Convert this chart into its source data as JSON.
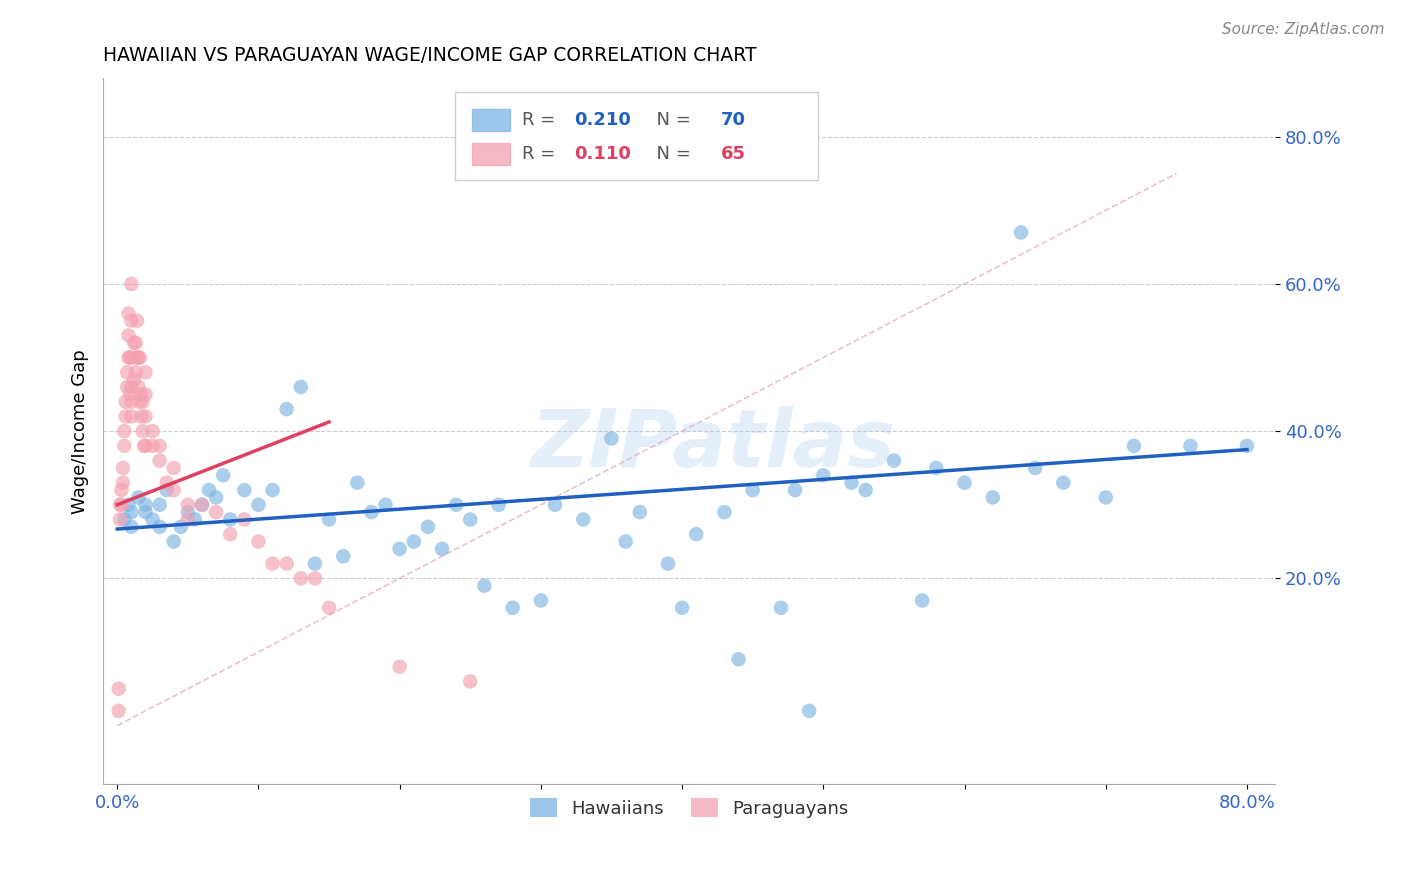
{
  "title": "HAWAIIAN VS PARAGUAYAN WAGE/INCOME GAP CORRELATION CHART",
  "source": "Source: ZipAtlas.com",
  "xlim": [
    -0.01,
    0.82
  ],
  "ylim": [
    -0.08,
    0.88
  ],
  "hawaiians_R": 0.21,
  "hawaiians_N": 70,
  "paraguayans_R": 0.11,
  "paraguayans_N": 65,
  "hawaiian_color": "#7EB4E3",
  "paraguayan_color": "#F4A0B0",
  "hawaiian_line_color": "#2060C0",
  "paraguayan_line_color": "#E04060",
  "hawaiians_x": [
    0.005,
    0.008,
    0.01,
    0.01,
    0.015,
    0.02,
    0.02,
    0.025,
    0.03,
    0.03,
    0.035,
    0.04,
    0.045,
    0.05,
    0.055,
    0.06,
    0.065,
    0.07,
    0.075,
    0.08,
    0.09,
    0.1,
    0.11,
    0.12,
    0.13,
    0.14,
    0.15,
    0.16,
    0.17,
    0.18,
    0.19,
    0.2,
    0.21,
    0.22,
    0.23,
    0.24,
    0.25,
    0.26,
    0.27,
    0.28,
    0.3,
    0.31,
    0.33,
    0.35,
    0.36,
    0.37,
    0.39,
    0.4,
    0.41,
    0.43,
    0.44,
    0.45,
    0.47,
    0.48,
    0.49,
    0.5,
    0.52,
    0.53,
    0.55,
    0.57,
    0.58,
    0.6,
    0.62,
    0.64,
    0.65,
    0.67,
    0.7,
    0.72,
    0.76,
    0.8
  ],
  "hawaiians_y": [
    0.28,
    0.3,
    0.27,
    0.29,
    0.31,
    0.29,
    0.3,
    0.28,
    0.27,
    0.3,
    0.32,
    0.25,
    0.27,
    0.29,
    0.28,
    0.3,
    0.32,
    0.31,
    0.34,
    0.28,
    0.32,
    0.3,
    0.32,
    0.43,
    0.46,
    0.22,
    0.28,
    0.23,
    0.33,
    0.29,
    0.3,
    0.24,
    0.25,
    0.27,
    0.24,
    0.3,
    0.28,
    0.19,
    0.3,
    0.16,
    0.17,
    0.3,
    0.28,
    0.39,
    0.25,
    0.29,
    0.22,
    0.16,
    0.26,
    0.29,
    0.09,
    0.32,
    0.16,
    0.32,
    0.02,
    0.34,
    0.33,
    0.32,
    0.36,
    0.17,
    0.35,
    0.33,
    0.31,
    0.67,
    0.35,
    0.33,
    0.31,
    0.38,
    0.38,
    0.38
  ],
  "paraguayans_x": [
    0.001,
    0.001,
    0.002,
    0.002,
    0.003,
    0.003,
    0.004,
    0.004,
    0.005,
    0.005,
    0.006,
    0.006,
    0.007,
    0.007,
    0.008,
    0.008,
    0.008,
    0.009,
    0.009,
    0.01,
    0.01,
    0.01,
    0.01,
    0.01,
    0.01,
    0.012,
    0.012,
    0.013,
    0.013,
    0.014,
    0.014,
    0.015,
    0.015,
    0.016,
    0.016,
    0.017,
    0.017,
    0.018,
    0.018,
    0.019,
    0.02,
    0.02,
    0.02,
    0.02,
    0.025,
    0.025,
    0.03,
    0.03,
    0.035,
    0.04,
    0.04,
    0.05,
    0.05,
    0.06,
    0.07,
    0.08,
    0.09,
    0.1,
    0.11,
    0.12,
    0.13,
    0.14,
    0.15,
    0.2,
    0.25
  ],
  "paraguayans_y": [
    0.05,
    0.02,
    0.3,
    0.28,
    0.32,
    0.3,
    0.33,
    0.35,
    0.38,
    0.4,
    0.42,
    0.44,
    0.46,
    0.48,
    0.5,
    0.53,
    0.56,
    0.45,
    0.5,
    0.42,
    0.44,
    0.46,
    0.5,
    0.55,
    0.6,
    0.47,
    0.52,
    0.48,
    0.52,
    0.5,
    0.55,
    0.46,
    0.5,
    0.44,
    0.5,
    0.42,
    0.45,
    0.4,
    0.44,
    0.38,
    0.45,
    0.48,
    0.38,
    0.42,
    0.38,
    0.4,
    0.36,
    0.38,
    0.33,
    0.35,
    0.32,
    0.3,
    0.28,
    0.3,
    0.29,
    0.26,
    0.28,
    0.25,
    0.22,
    0.22,
    0.2,
    0.2,
    0.16,
    0.08,
    0.06
  ]
}
